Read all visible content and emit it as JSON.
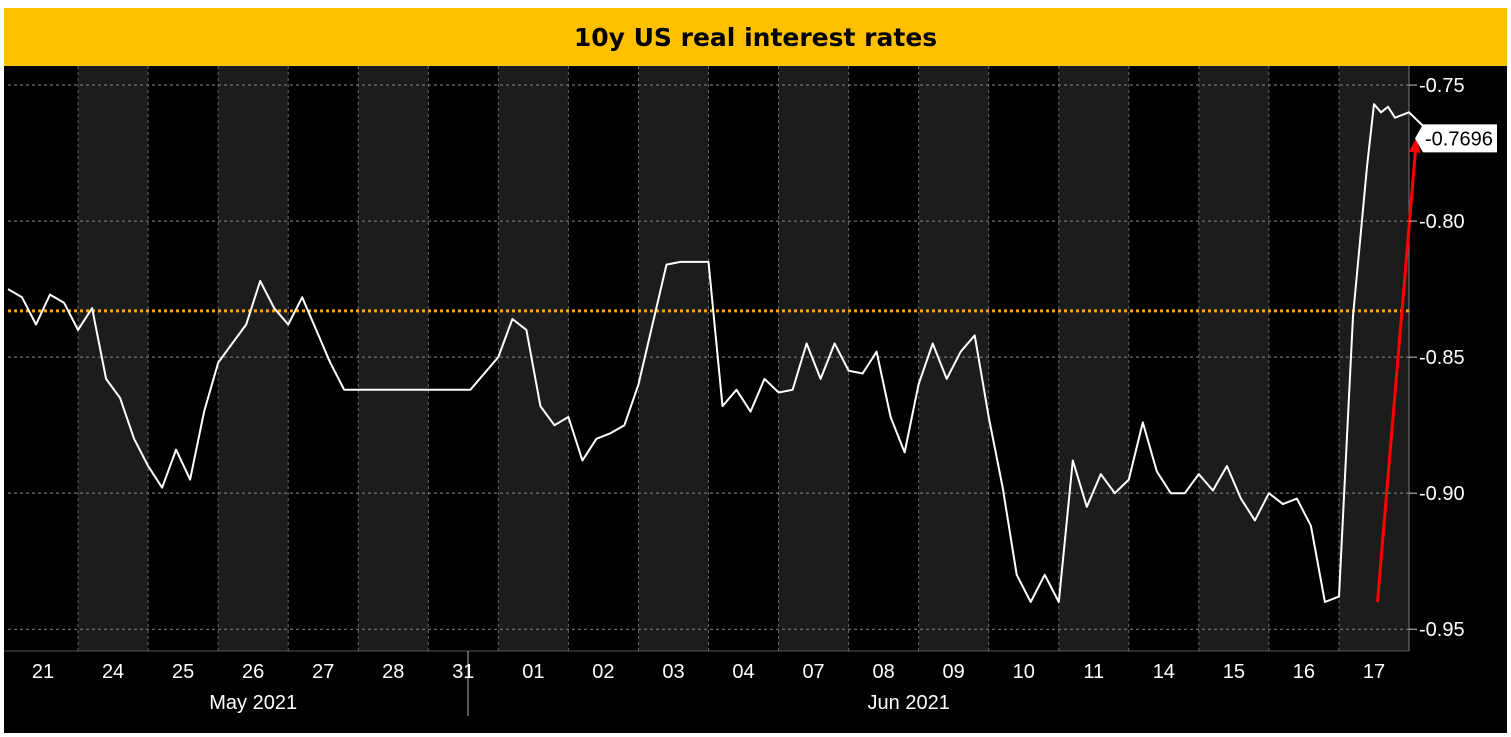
{
  "chart_data": {
    "type": "line",
    "title": "10y US real interest rates",
    "xlabel": "",
    "ylabel": "",
    "ylim": [
      -0.958,
      -0.743
    ],
    "y_ticks": [
      "-0.75",
      "-0.80",
      "-0.85",
      "-0.90",
      "-0.95"
    ],
    "y_tick_values": [
      -0.75,
      -0.8,
      -0.85,
      -0.9,
      -0.95
    ],
    "x_ticks": [
      "21",
      "24",
      "25",
      "26",
      "27",
      "28",
      "31",
      "01",
      "02",
      "03",
      "04",
      "07",
      "08",
      "09",
      "10",
      "11",
      "14",
      "15",
      "16",
      "17"
    ],
    "month_labels": [
      "May 2021",
      "Jun 2021"
    ],
    "last_value_label": "-0.7696",
    "last_value": -0.7696,
    "reference_level": -0.833,
    "grid": true,
    "legend": "none",
    "colors": {
      "background": "#000000",
      "alternate_day_band": "#1c1c1c",
      "line": "#ffffff",
      "reference_line": "#ffa500",
      "arrow": "#ff0000",
      "title_bar": "#ffc000"
    },
    "series": [
      {
        "x": [
          0,
          0.2,
          0.4,
          0.6,
          0.8,
          1.0,
          1.2,
          1.4,
          1.6,
          1.8,
          2.0,
          2.2,
          2.4,
          2.6,
          2.8,
          3.0,
          3.2,
          3.4,
          3.6,
          3.8,
          4.0,
          4.2,
          4.4,
          4.6,
          4.8,
          5.0,
          5.2,
          5.4,
          5.6,
          5.8,
          6.0,
          6.3,
          6.6,
          7.0,
          7.2,
          7.4,
          7.6,
          7.8,
          8.0,
          8.2,
          8.4,
          8.6,
          8.8,
          9.0,
          9.2,
          9.4,
          9.6,
          9.8,
          10.0,
          10.2,
          10.4,
          10.6,
          10.8,
          11.0,
          11.2,
          11.4,
          11.6,
          11.8,
          12.0,
          12.2,
          12.4,
          12.6,
          12.8,
          13.0,
          13.2,
          13.4,
          13.6,
          13.8,
          14.0,
          14.2,
          14.4,
          14.6,
          14.8,
          15.0,
          15.2,
          15.4,
          15.6,
          15.8,
          16.0,
          16.2,
          16.4,
          16.6,
          16.8,
          17.0,
          17.2,
          17.4,
          17.6,
          17.8,
          18.0,
          18.2,
          18.4,
          18.6,
          18.8,
          19.0,
          19.2,
          19.4,
          19.5,
          19.6,
          19.7,
          19.8,
          20.0,
          20.2,
          20.4,
          20.6
        ],
        "values": [
          -0.825,
          -0.828,
          -0.838,
          -0.827,
          -0.83,
          -0.84,
          -0.832,
          -0.858,
          -0.865,
          -0.88,
          -0.89,
          -0.898,
          -0.884,
          -0.895,
          -0.87,
          -0.852,
          -0.845,
          -0.838,
          -0.822,
          -0.832,
          -0.838,
          -0.828,
          -0.84,
          -0.852,
          -0.862,
          -0.862,
          -0.862,
          -0.862,
          -0.862,
          -0.862,
          -0.862,
          -0.862,
          -0.862,
          -0.85,
          -0.836,
          -0.84,
          -0.868,
          -0.875,
          -0.872,
          -0.888,
          -0.88,
          -0.878,
          -0.875,
          -0.86,
          -0.838,
          -0.816,
          -0.815,
          -0.815,
          -0.815,
          -0.868,
          -0.862,
          -0.87,
          -0.858,
          -0.863,
          -0.862,
          -0.845,
          -0.858,
          -0.845,
          -0.855,
          -0.856,
          -0.848,
          -0.872,
          -0.885,
          -0.86,
          -0.845,
          -0.858,
          -0.848,
          -0.842,
          -0.872,
          -0.898,
          -0.93,
          -0.94,
          -0.93,
          -0.94,
          -0.888,
          -0.905,
          -0.893,
          -0.9,
          -0.895,
          -0.874,
          -0.892,
          -0.9,
          -0.9,
          -0.893,
          -0.899,
          -0.89,
          -0.902,
          -0.91,
          -0.9,
          -0.904,
          -0.902,
          -0.912,
          -0.94,
          -0.938,
          -0.835,
          -0.78,
          -0.757,
          -0.76,
          -0.758,
          -0.762,
          -0.76,
          -0.765,
          -0.768,
          -0.77
        ]
      }
    ],
    "gap": [
      6.3,
      7.0
    ]
  }
}
